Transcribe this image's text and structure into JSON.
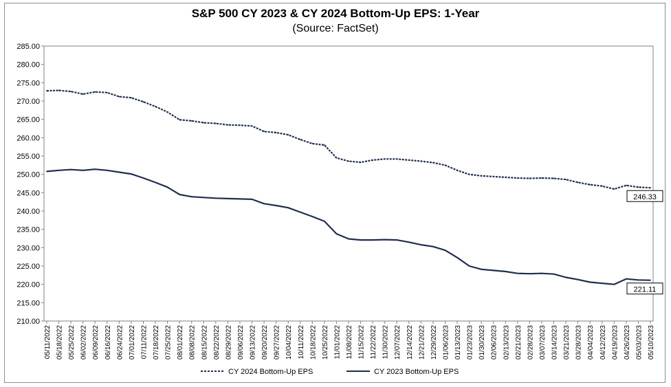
{
  "chart_data": {
    "type": "line",
    "title": "S&P 500 CY 2023 & CY 2024 Bottom-Up EPS: 1-Year",
    "subtitle": "(Source: FactSet)",
    "xlabel": "",
    "ylabel": "",
    "ylim": [
      210,
      285
    ],
    "yticks": [
      "285.00",
      "280.00",
      "275.00",
      "270.00",
      "265.00",
      "260.00",
      "255.00",
      "250.00",
      "245.00",
      "240.00",
      "235.00",
      "230.00",
      "225.00",
      "220.00",
      "215.00",
      "210.00"
    ],
    "xticks": [
      "05/11/2022",
      "05/18/2022",
      "05/25/2022",
      "06/02/2022",
      "06/09/2022",
      "06/16/2022",
      "06/24/2022",
      "07/01/2022",
      "07/11/2022",
      "07/18/2022",
      "07/25/2022",
      "08/01/2022",
      "08/08/2022",
      "08/15/2022",
      "08/22/2022",
      "08/29/2022",
      "09/06/2022",
      "09/13/2022",
      "09/20/2022",
      "09/27/2022",
      "10/04/2022",
      "10/11/2022",
      "10/18/2022",
      "10/25/2022",
      "11/01/2022",
      "11/08/2022",
      "11/15/2022",
      "11/22/2022",
      "11/30/2022",
      "12/07/2022",
      "12/14/2022",
      "12/21/2022",
      "12/29/2022",
      "01/06/2023",
      "01/13/2023",
      "01/23/2023",
      "01/30/2023",
      "02/06/2023",
      "02/13/2023",
      "02/21/2023",
      "02/28/2023",
      "03/07/2023",
      "03/14/2023",
      "03/21/2023",
      "03/28/2023",
      "04/04/2023",
      "04/12/2023",
      "04/19/2023",
      "04/26/2023",
      "05/03/2023",
      "05/10/2023"
    ],
    "legend_position": "bottom",
    "grid": false,
    "series": [
      {
        "name": "CY 2024 Bottom-Up EPS",
        "style": "dashed",
        "color": "#1f2d4d",
        "x": [
          "05/11/2022",
          "05/18/2022",
          "05/25/2022",
          "06/02/2022",
          "06/09/2022",
          "06/16/2022",
          "06/24/2022",
          "07/01/2022",
          "07/11/2022",
          "07/18/2022",
          "07/25/2022",
          "08/01/2022",
          "08/08/2022",
          "08/15/2022",
          "08/22/2022",
          "08/29/2022",
          "09/06/2022",
          "09/13/2022",
          "09/20/2022",
          "09/27/2022",
          "10/04/2022",
          "10/11/2022",
          "10/18/2022",
          "10/25/2022",
          "11/01/2022",
          "11/08/2022",
          "11/15/2022",
          "11/22/2022",
          "11/30/2022",
          "12/07/2022",
          "12/14/2022",
          "12/21/2022",
          "12/29/2022",
          "01/06/2023",
          "01/13/2023",
          "01/23/2023",
          "01/30/2023",
          "02/06/2023",
          "02/13/2023",
          "02/21/2023",
          "02/28/2023",
          "03/07/2023",
          "03/14/2023",
          "03/21/2023",
          "03/28/2023",
          "04/04/2023",
          "04/12/2023",
          "04/19/2023",
          "04/26/2023",
          "05/03/2023",
          "05/10/2023"
        ],
        "values": [
          272.8,
          272.9,
          272.6,
          271.9,
          272.5,
          272.3,
          271.2,
          270.9,
          269.8,
          268.5,
          267.0,
          264.9,
          264.6,
          264.1,
          263.9,
          263.5,
          263.4,
          263.2,
          261.7,
          261.4,
          260.8,
          259.5,
          258.4,
          258.0,
          254.5,
          253.6,
          253.3,
          253.9,
          254.2,
          254.2,
          253.9,
          253.6,
          253.2,
          252.5,
          251.1,
          250.0,
          249.6,
          249.4,
          249.2,
          249.0,
          248.9,
          249.0,
          248.9,
          248.6,
          247.8,
          247.2,
          246.8,
          246.0,
          247.0,
          246.5,
          246.33
        ],
        "end_label": "246.33"
      },
      {
        "name": "CY 2023 Bottom-Up EPS",
        "style": "solid",
        "color": "#1f2d4d",
        "x": [
          "05/11/2022",
          "05/18/2022",
          "05/25/2022",
          "06/02/2022",
          "06/09/2022",
          "06/16/2022",
          "06/24/2022",
          "07/01/2022",
          "07/11/2022",
          "07/18/2022",
          "07/25/2022",
          "08/01/2022",
          "08/08/2022",
          "08/15/2022",
          "08/22/2022",
          "08/29/2022",
          "09/06/2022",
          "09/13/2022",
          "09/20/2022",
          "09/27/2022",
          "10/04/2022",
          "10/11/2022",
          "10/18/2022",
          "10/25/2022",
          "11/01/2022",
          "11/08/2022",
          "11/15/2022",
          "11/22/2022",
          "11/30/2022",
          "12/07/2022",
          "12/14/2022",
          "12/21/2022",
          "12/29/2022",
          "01/06/2023",
          "01/13/2023",
          "01/23/2023",
          "01/30/2023",
          "02/06/2023",
          "02/13/2023",
          "02/21/2023",
          "02/28/2023",
          "03/07/2023",
          "03/14/2023",
          "03/21/2023",
          "03/28/2023",
          "04/04/2023",
          "04/12/2023",
          "04/19/2023",
          "04/26/2023",
          "05/03/2023",
          "05/10/2023"
        ],
        "values": [
          250.8,
          251.1,
          251.3,
          251.1,
          251.4,
          251.1,
          250.6,
          250.1,
          249.0,
          247.8,
          246.5,
          244.5,
          243.9,
          243.7,
          243.5,
          243.4,
          243.3,
          243.2,
          242.0,
          241.5,
          240.9,
          239.7,
          238.5,
          237.2,
          233.8,
          232.4,
          232.1,
          232.1,
          232.2,
          232.1,
          231.5,
          230.8,
          230.3,
          229.3,
          227.3,
          225.0,
          224.1,
          223.8,
          223.5,
          223.0,
          222.9,
          223.0,
          222.8,
          221.9,
          221.3,
          220.6,
          220.3,
          220.0,
          221.5,
          221.2,
          221.11
        ],
        "end_label": "221.11"
      }
    ]
  }
}
